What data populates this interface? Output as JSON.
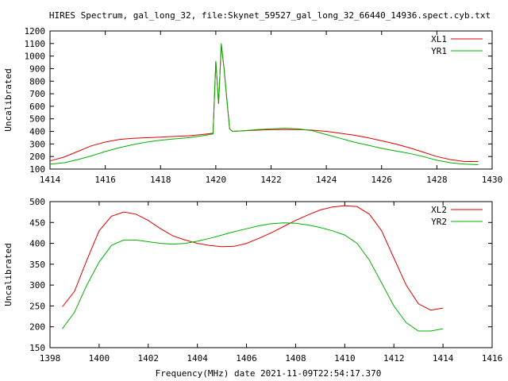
{
  "title": "HIRES Spectrum, gal_long_32, file:Skynet_59527_gal_long_32_66440_14936.spect.cyb.txt",
  "xlabel": "Frequency(MHz) date 2021-11-09T22:54:17.370",
  "colors": {
    "red": "#e00000",
    "green": "#00b000",
    "frame": "#000000"
  },
  "chart_data": [
    {
      "type": "line",
      "ylabel": "Uncalibrated",
      "xlim": [
        1414,
        1430
      ],
      "ylim": [
        100,
        1200
      ],
      "xticks": [
        "1414",
        "1416",
        "1418",
        "1420",
        "1422",
        "1424",
        "1426",
        "1428",
        "1430"
      ],
      "yticks": [
        "100",
        "200",
        "300",
        "400",
        "500",
        "600",
        "700",
        "800",
        "900",
        "1000",
        "1100",
        "1200"
      ],
      "legend_position": "top-right",
      "series": [
        {
          "name": "XL1",
          "color": "#e00000",
          "x": [
            1414,
            1414.5,
            1415,
            1415.5,
            1416,
            1416.5,
            1417,
            1417.5,
            1418,
            1418.5,
            1419,
            1419.5,
            1419.9,
            1420.0,
            1420.1,
            1420.2,
            1420.3,
            1420.4,
            1420.5,
            1420.6,
            1421,
            1421.5,
            1422,
            1422.5,
            1423,
            1423.5,
            1424,
            1424.5,
            1425,
            1425.5,
            1426,
            1426.5,
            1427,
            1427.5,
            1428,
            1428.5,
            1429,
            1429.5
          ],
          "y": [
            165,
            195,
            240,
            285,
            315,
            335,
            345,
            350,
            355,
            360,
            365,
            375,
            385,
            960,
            620,
            1090,
            900,
            650,
            420,
            400,
            405,
            410,
            415,
            415,
            415,
            410,
            400,
            385,
            370,
            350,
            325,
            300,
            270,
            235,
            200,
            175,
            160,
            160
          ]
        },
        {
          "name": "YR1",
          "color": "#00b000",
          "x": [
            1414,
            1414.5,
            1415,
            1415.5,
            1416,
            1416.5,
            1417,
            1417.5,
            1418,
            1418.5,
            1419,
            1419.5,
            1419.9,
            1420.0,
            1420.1,
            1420.2,
            1420.3,
            1420.4,
            1420.5,
            1420.6,
            1421,
            1421.5,
            1422,
            1422.5,
            1423,
            1423.5,
            1424,
            1424.5,
            1425,
            1425.5,
            1426,
            1426.5,
            1427,
            1427.5,
            1428,
            1428.5,
            1429,
            1429.5
          ],
          "y": [
            140,
            150,
            175,
            205,
            240,
            270,
            295,
            315,
            330,
            340,
            350,
            365,
            380,
            960,
            620,
            1100,
            900,
            660,
            420,
            400,
            405,
            415,
            420,
            425,
            420,
            405,
            375,
            345,
            315,
            290,
            265,
            245,
            225,
            200,
            170,
            150,
            140,
            135
          ]
        }
      ]
    },
    {
      "type": "line",
      "ylabel": "Uncalibrated",
      "xlim": [
        1398,
        1416
      ],
      "ylim": [
        150,
        500
      ],
      "xticks": [
        "1398",
        "1400",
        "1402",
        "1404",
        "1406",
        "1408",
        "1410",
        "1412",
        "1414",
        "1416"
      ],
      "yticks": [
        "150",
        "200",
        "250",
        "300",
        "350",
        "400",
        "450",
        "500"
      ],
      "legend_position": "top-right",
      "series": [
        {
          "name": "XL2",
          "color": "#e00000",
          "x": [
            1398.5,
            1399,
            1399.5,
            1400,
            1400.5,
            1401,
            1401.5,
            1402,
            1402.5,
            1403,
            1403.5,
            1404,
            1404.5,
            1405,
            1405.5,
            1406,
            1406.5,
            1407,
            1407.5,
            1408,
            1408.5,
            1409,
            1409.5,
            1410,
            1410.5,
            1411,
            1411.5,
            1412,
            1412.5,
            1413,
            1413.5,
            1414
          ],
          "y": [
            248,
            285,
            360,
            430,
            465,
            475,
            470,
            455,
            435,
            418,
            408,
            400,
            395,
            392,
            393,
            400,
            412,
            425,
            440,
            455,
            468,
            480,
            487,
            490,
            488,
            470,
            430,
            365,
            300,
            255,
            240,
            245
          ]
        },
        {
          "name": "YR2",
          "color": "#00b000",
          "x": [
            1398.5,
            1399,
            1399.5,
            1400,
            1400.5,
            1401,
            1401.5,
            1402,
            1402.5,
            1403,
            1403.5,
            1404,
            1404.5,
            1405,
            1405.5,
            1406,
            1406.5,
            1407,
            1407.5,
            1408,
            1408.5,
            1409,
            1409.5,
            1410,
            1410.5,
            1411,
            1411.5,
            1412,
            1412.5,
            1413,
            1413.5,
            1414
          ],
          "y": [
            195,
            235,
            300,
            355,
            395,
            408,
            408,
            404,
            400,
            398,
            400,
            405,
            412,
            420,
            428,
            435,
            442,
            447,
            449,
            448,
            444,
            438,
            430,
            420,
            400,
            360,
            305,
            250,
            210,
            190,
            190,
            195
          ]
        }
      ]
    }
  ]
}
